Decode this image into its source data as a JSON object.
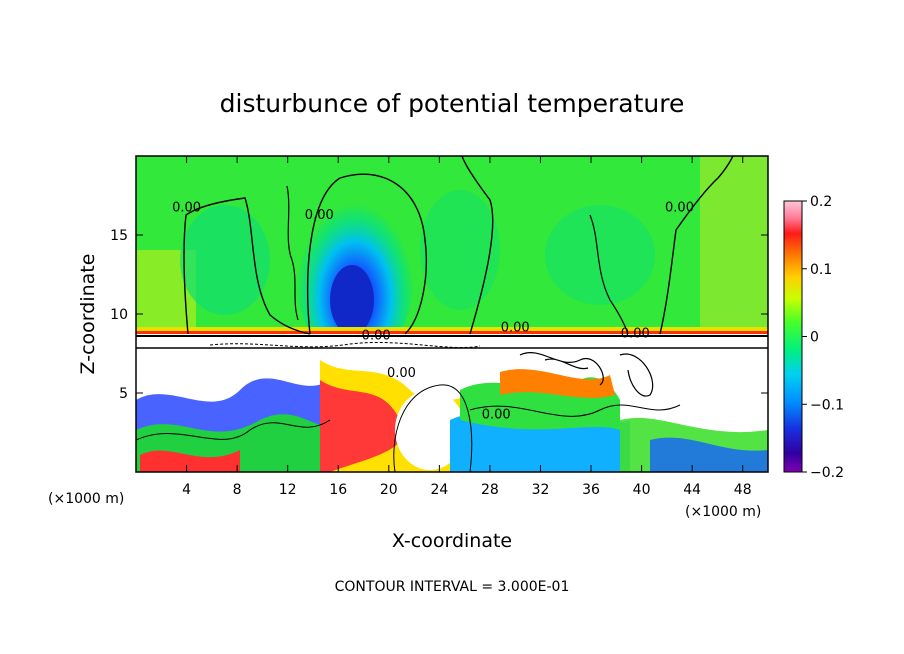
{
  "chart_data": {
    "type": "heatmap",
    "title": "disturbunce of potential temperature",
    "xlabel": "X-coordinate",
    "ylabel": "Z-coordinate",
    "x_unit_label": "(×1000 m)",
    "z_unit_label": "(×1000 m)",
    "xlim": [
      0,
      50
    ],
    "ylim": [
      0,
      20
    ],
    "x_ticks": [
      4,
      8,
      12,
      16,
      20,
      24,
      28,
      32,
      36,
      40,
      44,
      48
    ],
    "y_ticks": [
      5,
      10,
      15
    ],
    "colorbar": {
      "range": [
        -0.2,
        0.2
      ],
      "ticks": [
        0.2,
        0.1,
        0,
        -0.1,
        -0.2
      ],
      "tick_labels": [
        "0.2",
        "0.1",
        "0",
        "−0.1",
        "−0.2"
      ]
    },
    "contour_labels": [
      {
        "text": "0.00",
        "x": 4.0,
        "z": 16.5
      },
      {
        "text": "0.00",
        "x": 14.5,
        "z": 16.0
      },
      {
        "text": "0.00",
        "x": 43.0,
        "z": 16.5
      },
      {
        "text": "0.00",
        "x": 19.0,
        "z": 8.4
      },
      {
        "text": "0.00",
        "x": 30.0,
        "z": 8.9
      },
      {
        "text": "0.00",
        "x": 39.5,
        "z": 8.5
      },
      {
        "text": "0.00",
        "x": 21.0,
        "z": 6.0
      },
      {
        "text": "0.00",
        "x": 28.5,
        "z": 3.4
      }
    ],
    "contour_interval_note": "CONTOUR INTERVAL = 3.000E-01"
  }
}
